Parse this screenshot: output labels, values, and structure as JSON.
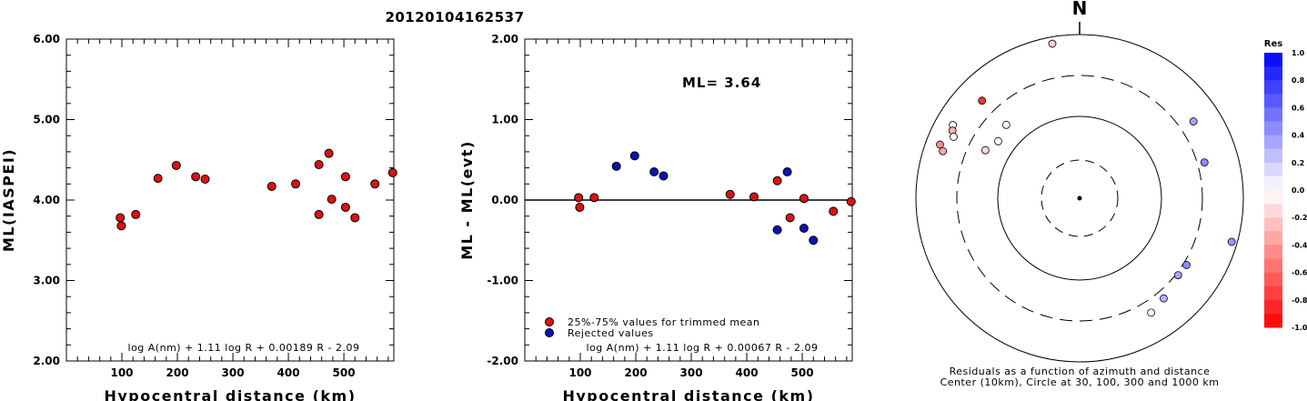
{
  "title": "20120104162537",
  "chart_data": [
    {
      "type": "scatter",
      "xlabel": "Hypocentral distance (km)",
      "ylabel": "ML(IASPEI)",
      "xlim": [
        0,
        590
      ],
      "ylim": [
        2.0,
        6.0
      ],
      "xticks": [
        "100",
        "200",
        "300",
        "400",
        "500"
      ],
      "yticks": [
        "2.00",
        "3.00",
        "4.00",
        "5.00",
        "6.00"
      ],
      "formula": "log A(nm) + 1.11 log R + 0.00189 R - 2.09",
      "series": [
        {
          "color": "#dd1111",
          "points": [
            [
              97,
              3.78
            ],
            [
              99,
              3.68
            ],
            [
              125,
              3.82
            ],
            [
              165,
              4.27
            ],
            [
              198,
              4.43
            ],
            [
              233,
              4.29
            ],
            [
              250,
              4.26
            ],
            [
              370,
              4.17
            ],
            [
              413,
              4.2
            ],
            [
              455,
              4.44
            ],
            [
              455,
              3.82
            ],
            [
              473,
              4.58
            ],
            [
              478,
              4.01
            ],
            [
              503,
              4.29
            ],
            [
              503,
              3.91
            ],
            [
              520,
              3.78
            ],
            [
              556,
              4.2
            ],
            [
              588,
              4.34
            ]
          ]
        }
      ]
    },
    {
      "type": "scatter",
      "xlabel": "Hypocentral distance (km)",
      "ylabel": "ML - ML(evt)",
      "xlim": [
        0,
        590
      ],
      "ylim": [
        -2.0,
        2.0
      ],
      "xticks": [
        "100",
        "200",
        "300",
        "400",
        "500"
      ],
      "yticks": [
        "-2.00",
        "-1.00",
        "0.00",
        "1.00",
        "2.00"
      ],
      "ml_label": "ML= 3.64",
      "formula": "log A(nm) + 1.11 log R + 0.00067 R - 2.09",
      "legend": [
        "25%-75% values for trimmed mean",
        "Rejected values"
      ],
      "series": [
        {
          "name": "25%-75% values for trimmed mean",
          "color": "#dd1111",
          "points": [
            [
              97,
              0.03
            ],
            [
              99,
              -0.09
            ],
            [
              125,
              0.03
            ],
            [
              370,
              0.07
            ],
            [
              413,
              0.04
            ],
            [
              455,
              0.24
            ],
            [
              478,
              -0.22
            ],
            [
              503,
              0.02
            ],
            [
              556,
              -0.14
            ],
            [
              588,
              -0.02
            ]
          ]
        },
        {
          "name": "Rejected values",
          "color": "#0a12b8",
          "points": [
            [
              165,
              0.42
            ],
            [
              198,
              0.55
            ],
            [
              233,
              0.35
            ],
            [
              250,
              0.3
            ],
            [
              455,
              -0.37
            ],
            [
              473,
              0.35
            ],
            [
              503,
              -0.35
            ],
            [
              520,
              -0.5
            ]
          ]
        }
      ]
    },
    {
      "type": "scatter",
      "north_label": "N",
      "caption_line1": "Residuals as a function of azimuth and distance",
      "caption_line2": "Center (10km), Circle at 30, 100, 300 and 1000 km",
      "colorbar_title": "Res",
      "colorbar_ticks": [
        "1.0",
        "0.8",
        "0.6",
        "0.4",
        "0.2",
        "0.0",
        "-0.2",
        "-0.4",
        "-0.6",
        "-0.8",
        "-1.0"
      ],
      "stations": [
        {
          "az": 350,
          "dist": 820,
          "res": -0.2
        },
        {
          "az": 315,
          "dist": 470,
          "res": -0.8
        },
        {
          "az": 300,
          "dist": 600,
          "res": 0.02
        },
        {
          "az": 298,
          "dist": 560,
          "res": -0.3
        },
        {
          "az": 296,
          "dist": 500,
          "res": 0.0
        },
        {
          "az": 291,
          "dist": 660,
          "res": -0.45
        },
        {
          "az": 289,
          "dist": 570,
          "res": -0.35
        },
        {
          "az": 315,
          "dist": 180,
          "res": 0.0
        },
        {
          "az": 305,
          "dist": 160,
          "res": 0.0
        },
        {
          "az": 297,
          "dist": 190,
          "res": -0.15
        },
        {
          "az": 56,
          "dist": 460,
          "res": 0.35
        },
        {
          "az": 74,
          "dist": 370,
          "res": 0.45
        },
        {
          "az": 106,
          "dist": 850,
          "res": 0.4
        },
        {
          "az": 122,
          "dist": 330,
          "res": 0.45
        },
        {
          "az": 128,
          "dist": 320,
          "res": 0.35
        },
        {
          "az": 140,
          "dist": 380,
          "res": 0.3
        },
        {
          "az": 148,
          "dist": 430,
          "res": 0.0
        }
      ]
    }
  ]
}
